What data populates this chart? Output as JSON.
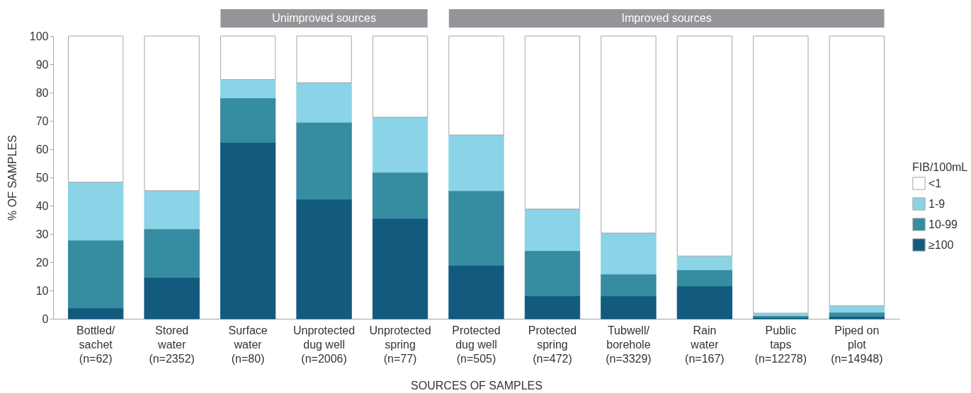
{
  "chart_data": {
    "type": "bar",
    "stacked": true,
    "xlabel": "SOURCES OF SAMPLES",
    "ylabel": "% OF SAMPLES",
    "legend_title": "FIB/100mL",
    "legend": "right",
    "grid": false,
    "categories": [
      "Bottled/\nsachet\n(n=62)",
      "Stored\nwater\n(n=2352)",
      "Surface\nwater\n(n=80)",
      "Unprotected\ndug well\n(n=2006)",
      "Unprotected\nspring\n(n=77)",
      "Protected\ndug well\n(n=505)",
      "Protected\nspring\n(n=472)",
      "Tubwell/\nborehole\n(n=3329)",
      "Rain\nwater\n(n=167)",
      "Public\ntaps\n(n=12278)",
      "Piped on\nplot\n(n=14948)"
    ],
    "series": [
      {
        "name": "≥100",
        "color": "#135a7f",
        "values": [
          3.8,
          14.6,
          62.4,
          42.3,
          35.5,
          18.9,
          8.1,
          8.1,
          11.6,
          0.5,
          0.8
        ]
      },
      {
        "name": "10-99",
        "color": "#368ca0",
        "values": [
          24.0,
          17.2,
          15.7,
          27.2,
          16.3,
          26.4,
          16.0,
          7.7,
          5.7,
          0.6,
          1.5
        ]
      },
      {
        "name": "1-9",
        "color": "#8bd3e6",
        "values": [
          20.5,
          13.5,
          6.5,
          14.0,
          19.5,
          19.7,
          14.7,
          14.5,
          4.9,
          0.9,
          2.3
        ]
      },
      {
        "name": "<1",
        "color": "#ffffff",
        "values": [
          51.7,
          54.7,
          15.4,
          16.5,
          28.7,
          35.0,
          61.2,
          69.7,
          77.8,
          98.0,
          95.4
        ]
      }
    ],
    "ylim": [
      0,
      100
    ],
    "yticks": [
      0,
      10,
      20,
      30,
      40,
      50,
      60,
      70,
      80,
      90,
      100
    ],
    "annotations": [
      "Unimproved sources",
      "Improved sources"
    ]
  }
}
